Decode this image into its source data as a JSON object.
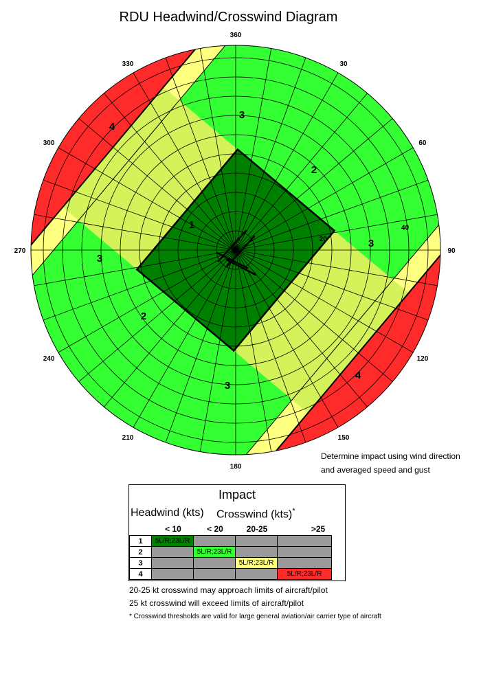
{
  "title": "RDU Headwind/Crosswind Diagram",
  "compass_labels": [
    "360",
    "30",
    "60",
    "90",
    "120",
    "150",
    "180",
    "210",
    "240",
    "270",
    "300",
    "330"
  ],
  "speed_labels": [
    "20",
    "40"
  ],
  "zone_labels": {
    "z1": "1",
    "z2": "2",
    "z3": "3",
    "z4": "4"
  },
  "colors": {
    "zone1": "#008000",
    "zone2": "#33ff33",
    "zone3": "#ffff80",
    "zone4": "#ff2a2a",
    "cell_gray": "#999999"
  },
  "notes": [
    "Determine impact using wind direction",
    "and averaged speed and gust"
  ],
  "impact_table": {
    "title": "Impact",
    "headwind_label": "Headwind (kts)",
    "crosswind_label": "Crosswind (kts)",
    "asterisk": "*",
    "columns": [
      "< 10",
      "< 20",
      "20-25",
      ">25"
    ],
    "rows": [
      {
        "num": "1",
        "cells": [
          "5L/R;23L/R",
          "",
          "",
          ""
        ]
      },
      {
        "num": "2",
        "cells": [
          "",
          "5L/R;23L/R",
          "",
          ""
        ]
      },
      {
        "num": "3",
        "cells": [
          "",
          "",
          "5L/R;23L/R",
          ""
        ]
      },
      {
        "num": "4",
        "cells": [
          "",
          "",
          "",
          "5L/R;23L/R"
        ]
      }
    ]
  },
  "footnotes": [
    "20-25 kt crosswind may approach limits of aircraft/pilot",
    "25 kt crosswind will exceed limits of aircraft/pilot",
    "* Crosswind thresholds are valid for large general aviation/air carrier type of aircraft"
  ]
}
